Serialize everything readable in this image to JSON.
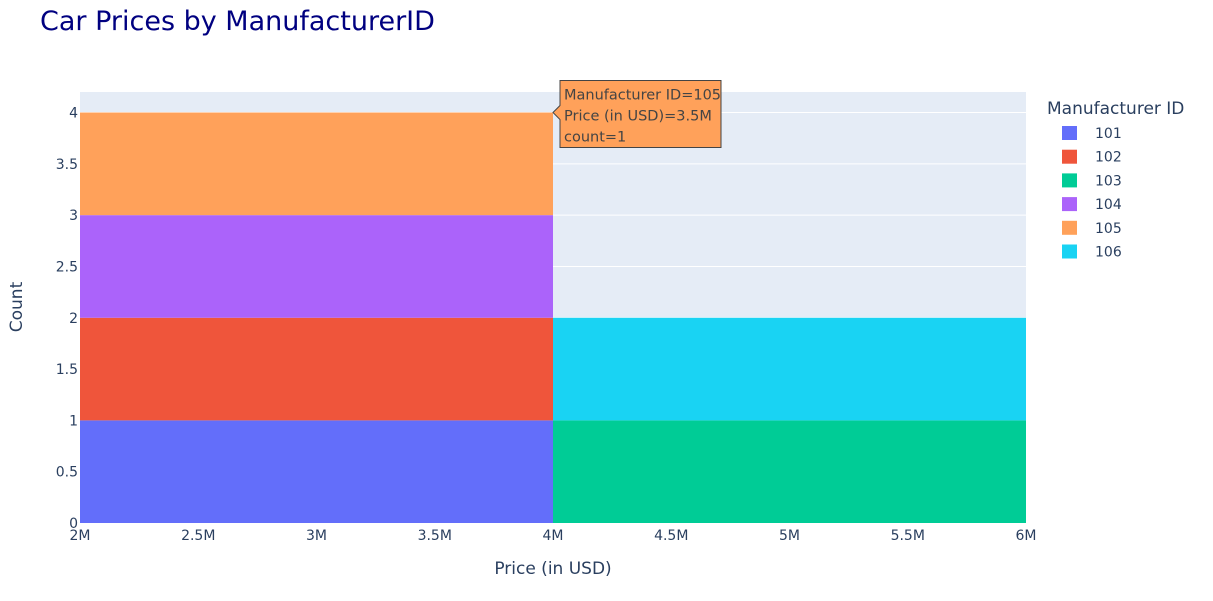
{
  "chart_data": {
    "type": "bar",
    "title": "Car Prices by ManufacturerID",
    "xlabel": "Price (in USD)",
    "ylabel": "Count",
    "xlim": [
      2000000,
      6000000
    ],
    "ylim": [
      0,
      4.2
    ],
    "x_ticks": [
      {
        "value": 2000000,
        "label": "2M"
      },
      {
        "value": 2500000,
        "label": "2.5M"
      },
      {
        "value": 3000000,
        "label": "3M"
      },
      {
        "value": 3500000,
        "label": "3.5M"
      },
      {
        "value": 4000000,
        "label": "4M"
      },
      {
        "value": 4500000,
        "label": "4.5M"
      },
      {
        "value": 5000000,
        "label": "5M"
      },
      {
        "value": 5500000,
        "label": "5.5M"
      },
      {
        "value": 6000000,
        "label": "6M"
      }
    ],
    "y_ticks": [
      {
        "value": 0,
        "label": "0"
      },
      {
        "value": 0.5,
        "label": "0.5"
      },
      {
        "value": 1,
        "label": "1"
      },
      {
        "value": 1.5,
        "label": "1.5"
      },
      {
        "value": 2,
        "label": "2"
      },
      {
        "value": 2.5,
        "label": "2.5"
      },
      {
        "value": 3,
        "label": "3"
      },
      {
        "value": 3.5,
        "label": "3.5"
      },
      {
        "value": 4,
        "label": "4"
      }
    ],
    "bins": [
      {
        "start": 2000000,
        "end": 4000000
      },
      {
        "start": 4000000,
        "end": 6000000
      }
    ],
    "barmode": "stack",
    "series": [
      {
        "name": "101",
        "color": "#636efa",
        "counts": [
          1,
          0
        ]
      },
      {
        "name": "102",
        "color": "#ef553b",
        "counts": [
          1,
          0
        ]
      },
      {
        "name": "103",
        "color": "#00cc96",
        "counts": [
          0,
          1
        ]
      },
      {
        "name": "104",
        "color": "#ab63fa",
        "counts": [
          1,
          0
        ]
      },
      {
        "name": "105",
        "color": "#ffa15a",
        "counts": [
          1,
          0
        ]
      },
      {
        "name": "106",
        "color": "#19d3f3",
        "counts": [
          0,
          1
        ]
      }
    ],
    "legend": {
      "title": "Manufacturer ID",
      "placement": "right"
    },
    "grid": true,
    "plot_background": "#e5ecf6",
    "tooltip": {
      "series": "105",
      "bin": 0,
      "lines": [
        "Manufacturer ID=105",
        "Price (in USD)=3.5M",
        "count=1"
      ]
    }
  }
}
